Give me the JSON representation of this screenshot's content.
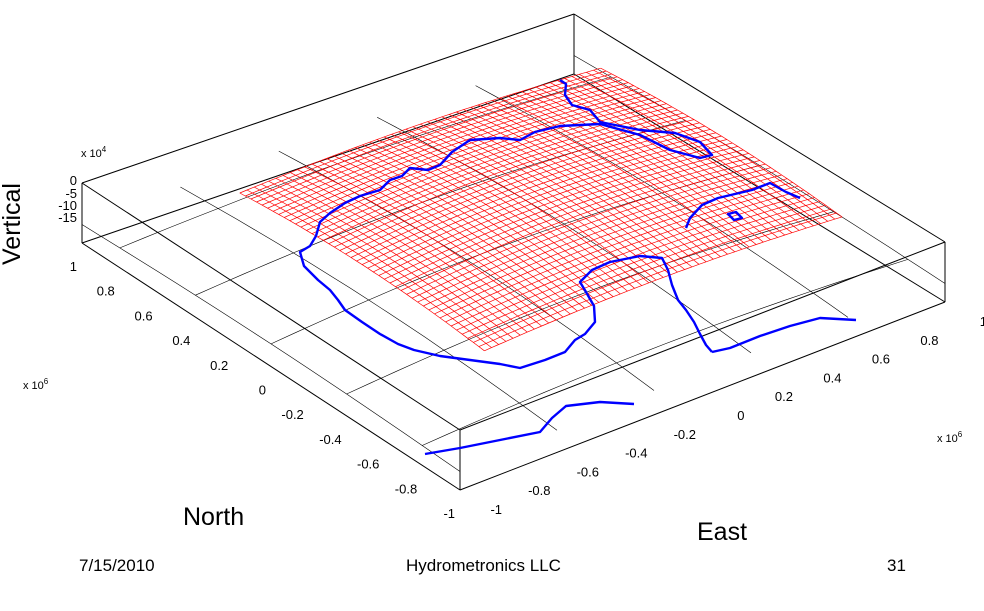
{
  "chart_data": {
    "type": "surface",
    "subtype": "3d-mesh-with-coastline",
    "zlabel": "Vertical",
    "ylabel": "North",
    "xlabel": "East",
    "z_multiplier": "x 10^4",
    "y_multiplier": "x 10^6",
    "x_multiplier": "x 10^6",
    "z_ticks": [
      "0",
      "-5",
      "-10",
      "-15"
    ],
    "y_ticks": [
      "1",
      "0.8",
      "0.6",
      "0.4",
      "0.2",
      "0",
      "-0.2",
      "-0.4",
      "-0.6",
      "-0.8",
      "-1"
    ],
    "x_ticks": [
      "-1",
      "-0.8",
      "-0.6",
      "-0.4",
      "-0.2",
      "0",
      "0.2",
      "0.4",
      "0.6",
      "0.8",
      "1"
    ],
    "xlim": [
      -1,
      1
    ],
    "ylim": [
      -1,
      1
    ],
    "zlim": [
      -18,
      0
    ],
    "mesh_color": "#ff0000",
    "coastline_color": "#0000ff",
    "grid": true
  },
  "footer": {
    "date": "7/15/2010",
    "company": "Hydrometronics LLC",
    "page": "31"
  }
}
